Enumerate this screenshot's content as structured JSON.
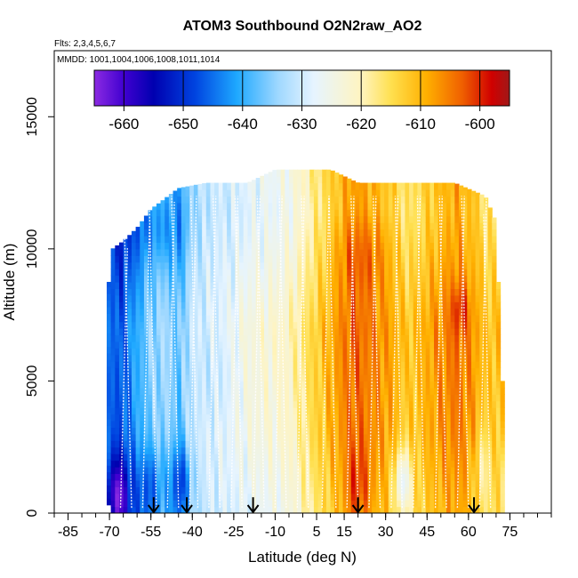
{
  "chart_data": {
    "type": "heatmap",
    "title": "ATOM3 Southbound O2N2raw_AO2",
    "flights_note": "Flts: 2,3,4,5,6,7",
    "dates_note": "MMDD: 1001,1004,1006,1008,1011,1014",
    "xlabel": "Latitude (deg N)",
    "ylabel": "Altitude (m)",
    "xlim": [
      -90,
      90
    ],
    "ylim": [
      0,
      17500
    ],
    "x_ticks": [
      -85,
      -70,
      -55,
      -40,
      -25,
      -10,
      5,
      15,
      30,
      45,
      60,
      75
    ],
    "x_tick_labels": [
      "-85",
      "-70",
      "-55",
      "-40",
      "-25",
      "-10",
      "5",
      "15",
      "30",
      "45",
      "60",
      "75"
    ],
    "x_minor_step": 5,
    "y_ticks": [
      0,
      5000,
      10000,
      15000
    ],
    "y_tick_labels": [
      "0",
      "5000",
      "10000",
      "15000"
    ],
    "colorbar": {
      "min": -665,
      "max": -595,
      "ticks": [
        -660,
        -650,
        -640,
        -630,
        -620,
        -610,
        -600
      ],
      "tick_labels": [
        "-660",
        "-650",
        "-640",
        "-630",
        "-620",
        "-610",
        "-600"
      ],
      "stops": [
        {
          "v": -665,
          "c": "#8c2be2"
        },
        {
          "v": -660,
          "c": "#4000d0"
        },
        {
          "v": -655,
          "c": "#0000b0"
        },
        {
          "v": -648,
          "c": "#0044e0"
        },
        {
          "v": -641,
          "c": "#1ea8ff"
        },
        {
          "v": -634,
          "c": "#9fd8ff"
        },
        {
          "v": -628,
          "c": "#e6f4ff"
        },
        {
          "v": -620,
          "c": "#fff4c0"
        },
        {
          "v": -615,
          "c": "#ffe050"
        },
        {
          "v": -609,
          "c": "#ffb000"
        },
        {
          "v": -603,
          "c": "#f06000"
        },
        {
          "v": -598,
          "c": "#d00000"
        },
        {
          "v": -595,
          "c": "#a01818"
        }
      ]
    },
    "coverage": [
      {
        "lat": -71.0,
        "top": 8000,
        "bottom": 500
      },
      {
        "lat": -69.0,
        "top": 10000,
        "bottom": 0
      },
      {
        "lat": -65.0,
        "top": 10300,
        "bottom": 0
      },
      {
        "lat": -60.0,
        "top": 10800,
        "bottom": 0
      },
      {
        "lat": -55.0,
        "top": 11500,
        "bottom": 0
      },
      {
        "lat": -45.0,
        "top": 12300,
        "bottom": 0
      },
      {
        "lat": -35.0,
        "top": 12500,
        "bottom": 0
      },
      {
        "lat": -20.0,
        "top": 12500,
        "bottom": 0
      },
      {
        "lat": -10.0,
        "top": 13000,
        "bottom": 0
      },
      {
        "lat": 10.0,
        "top": 13000,
        "bottom": 0
      },
      {
        "lat": 20.0,
        "top": 12500,
        "bottom": 0
      },
      {
        "lat": 40.0,
        "top": 12500,
        "bottom": 0
      },
      {
        "lat": 55.0,
        "top": 12500,
        "bottom": 0
      },
      {
        "lat": 66.0,
        "top": 12000,
        "bottom": 0
      },
      {
        "lat": 70.0,
        "top": 11000,
        "bottom": 0
      },
      {
        "lat": 72.0,
        "top": 5000,
        "bottom": 0
      }
    ],
    "field_profile": [
      {
        "lat": -72,
        "value": -644
      },
      {
        "lat": -66,
        "value": -648
      },
      {
        "lat": -60,
        "value": -641
      },
      {
        "lat": -55,
        "value": -636
      },
      {
        "lat": -50,
        "value": -634
      },
      {
        "lat": -45,
        "value": -638
      },
      {
        "lat": -40,
        "value": -630
      },
      {
        "lat": -33,
        "value": -627
      },
      {
        "lat": -25,
        "value": -626
      },
      {
        "lat": -18,
        "value": -624
      },
      {
        "lat": -10,
        "value": -623
      },
      {
        "lat": -4,
        "value": -621
      },
      {
        "lat": 2,
        "value": -616
      },
      {
        "lat": 10,
        "value": -610
      },
      {
        "lat": 18,
        "value": -604
      },
      {
        "lat": 25,
        "value": -606
      },
      {
        "lat": 32,
        "value": -609
      },
      {
        "lat": 38,
        "value": -613
      },
      {
        "lat": 44,
        "value": -610
      },
      {
        "lat": 50,
        "value": -607
      },
      {
        "lat": 56,
        "value": -605
      },
      {
        "lat": 62,
        "value": -608
      },
      {
        "lat": 66,
        "value": -612
      },
      {
        "lat": 72,
        "value": -612
      }
    ],
    "field_altitude_shift": [
      {
        "alt": 0,
        "shift": -3
      },
      {
        "alt": 3000,
        "shift": 0
      },
      {
        "alt": 7000,
        "shift": 1
      },
      {
        "alt": 9500,
        "shift": -2
      },
      {
        "alt": 11500,
        "shift": -4
      },
      {
        "alt": 13000,
        "shift": -3
      }
    ],
    "field_features": [
      {
        "lat": -67,
        "alt": 700,
        "dlat": 4,
        "dalt": 1400,
        "amp": -14
      },
      {
        "lat": -55,
        "alt": 1000,
        "dlat": 5,
        "dalt": 1500,
        "amp": -8
      },
      {
        "lat": -44,
        "alt": 1200,
        "dlat": 4,
        "dalt": 1400,
        "amp": -10
      },
      {
        "lat": -32,
        "alt": 5500,
        "dlat": 8,
        "dalt": 3000,
        "amp": -4
      },
      {
        "lat": -52,
        "alt": 10600,
        "dlat": 10,
        "dalt": 1200,
        "amp": -4
      },
      {
        "lat": 20,
        "alt": 1000,
        "dlat": 4,
        "dalt": 1500,
        "amp": 6
      },
      {
        "lat": 22,
        "alt": 9800,
        "dlat": 10,
        "dalt": 1500,
        "amp": 4
      },
      {
        "lat": 57,
        "alt": 7800,
        "dlat": 3,
        "dalt": 900,
        "amp": 6
      },
      {
        "lat": 36,
        "alt": 1200,
        "dlat": 3,
        "dalt": 1200,
        "amp": -14
      },
      {
        "lat": 65,
        "alt": 1800,
        "dlat": 3,
        "dalt": 1500,
        "amp": -6
      }
    ],
    "profile_lats": [
      -66,
      -62,
      -58,
      -53,
      -49,
      -45,
      -41,
      -38,
      -34,
      -30,
      -26,
      -22,
      -18,
      -14,
      -10,
      -6,
      -2,
      2,
      7,
      12,
      16,
      20,
      24,
      28,
      32,
      36,
      40,
      44,
      48,
      52,
      56,
      60,
      64,
      68
    ],
    "profile_top_alt": 12000,
    "profile_bottom_alt": 200,
    "profile_drift_deg": 2.5,
    "arrow_lats": [
      -54,
      -42,
      -18,
      20,
      62
    ],
    "arrow_alt": 600
  }
}
